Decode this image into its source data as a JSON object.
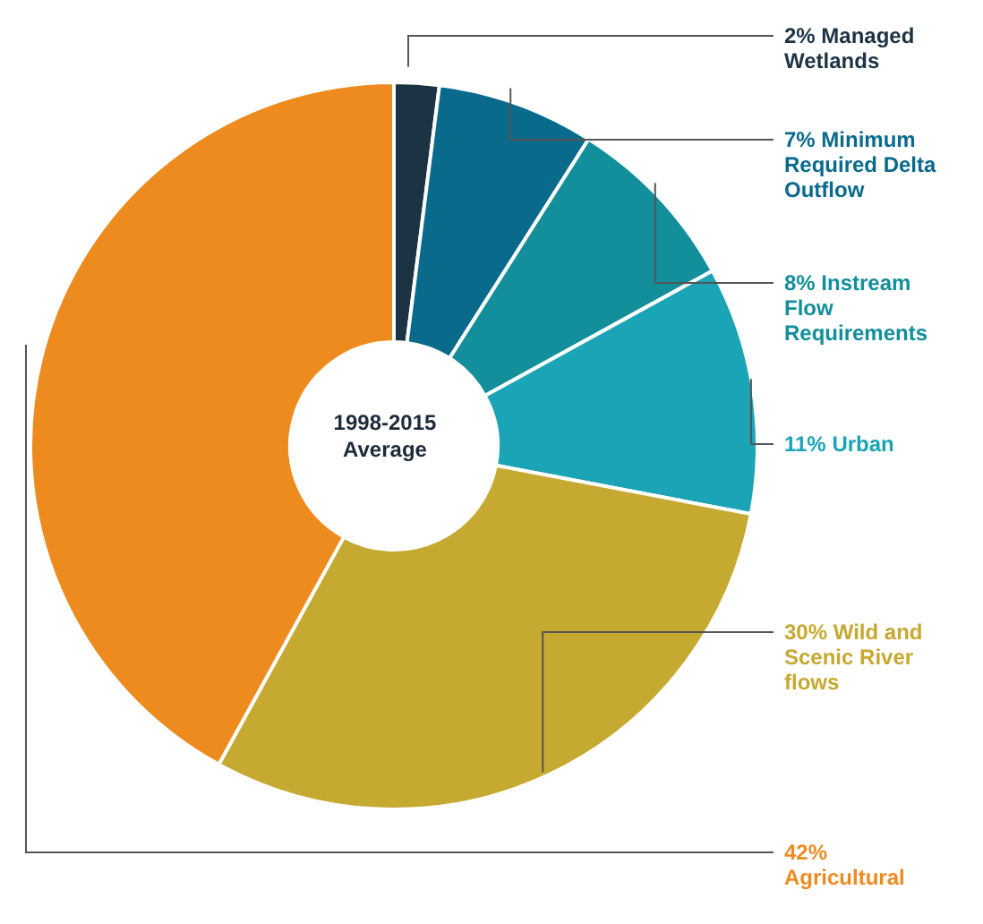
{
  "chart_data": {
    "type": "donut",
    "categories": [
      "Managed Wetlands",
      "Minimum Required Delta Outflow",
      "Instream Flow Requirements",
      "Urban",
      "Wild and Scenic River flows",
      "Agricultural"
    ],
    "values": [
      2,
      7,
      8,
      11,
      30,
      42
    ],
    "value_labels": [
      "2%",
      "7%",
      "8%",
      "11%",
      "30%",
      "42%"
    ],
    "colors": [
      "#1c3344",
      "#0a6a8c",
      "#128f9b",
      "#1ba4b6",
      "#c6a931",
      "#ee8b1f"
    ],
    "annotations": [
      "1998-2015 Average"
    ]
  }
}
